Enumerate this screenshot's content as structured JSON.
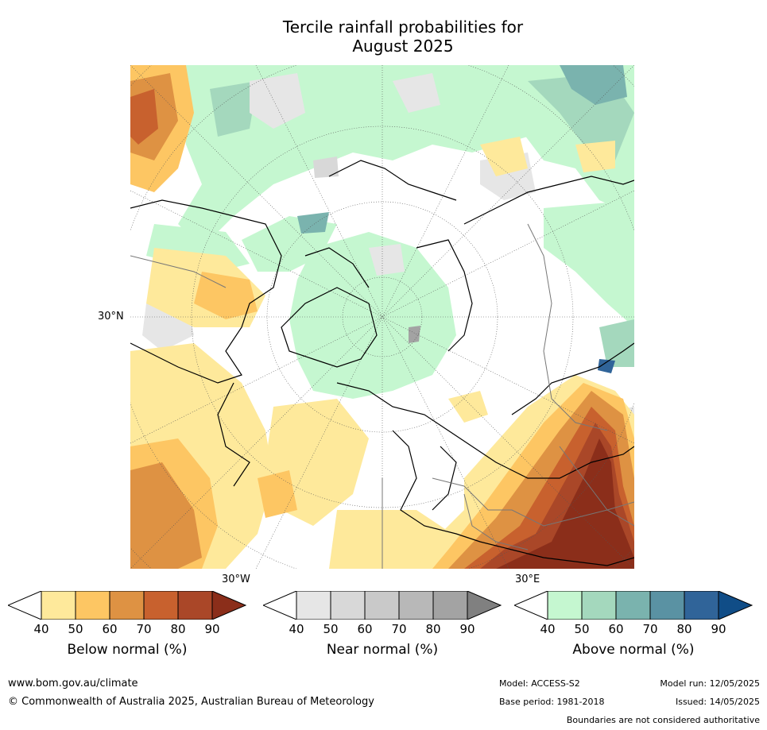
{
  "title_line1": "Tercile rainfall probabilities for",
  "title_line2": "August 2025",
  "map": {
    "lat_label": "30°N",
    "lon_label_left": "30°W",
    "lon_label_right": "30°E"
  },
  "colorbars": [
    {
      "id": "below",
      "title": "Below normal (%)",
      "ticks": [
        "40",
        "50",
        "60",
        "70",
        "80",
        "90"
      ],
      "colors": [
        "#ffffff",
        "#fee99b",
        "#fdc663",
        "#de9243",
        "#c8612e",
        "#aa4728",
        "#8b2e1a"
      ]
    },
    {
      "id": "near",
      "title": "Near normal (%)",
      "ticks": [
        "40",
        "50",
        "60",
        "70",
        "80",
        "90"
      ],
      "colors": [
        "#ffffff",
        "#e6e6e6",
        "#d8d8d8",
        "#c9c9c9",
        "#b8b8b8",
        "#a3a3a3",
        "#808080"
      ]
    },
    {
      "id": "above",
      "title": "Above normal (%)",
      "ticks": [
        "40",
        "50",
        "60",
        "70",
        "80",
        "90"
      ],
      "colors": [
        "#ffffff",
        "#c5f7d0",
        "#a4d8bd",
        "#7ab3ae",
        "#5a92a3",
        "#306499",
        "#104d87"
      ]
    }
  ],
  "footer": {
    "url": "www.bom.gov.au/climate",
    "copyright": "© Commonwealth of Australia 2025, Australian Bureau of Meteorology",
    "model": "Model: ACCESS-S2",
    "base_period": "Base period: 1981-2018",
    "model_run": "Model run: 12/05/2025",
    "issued": "Issued: 14/05/2025",
    "disclaimer": "Boundaries are not considered authoritative"
  }
}
